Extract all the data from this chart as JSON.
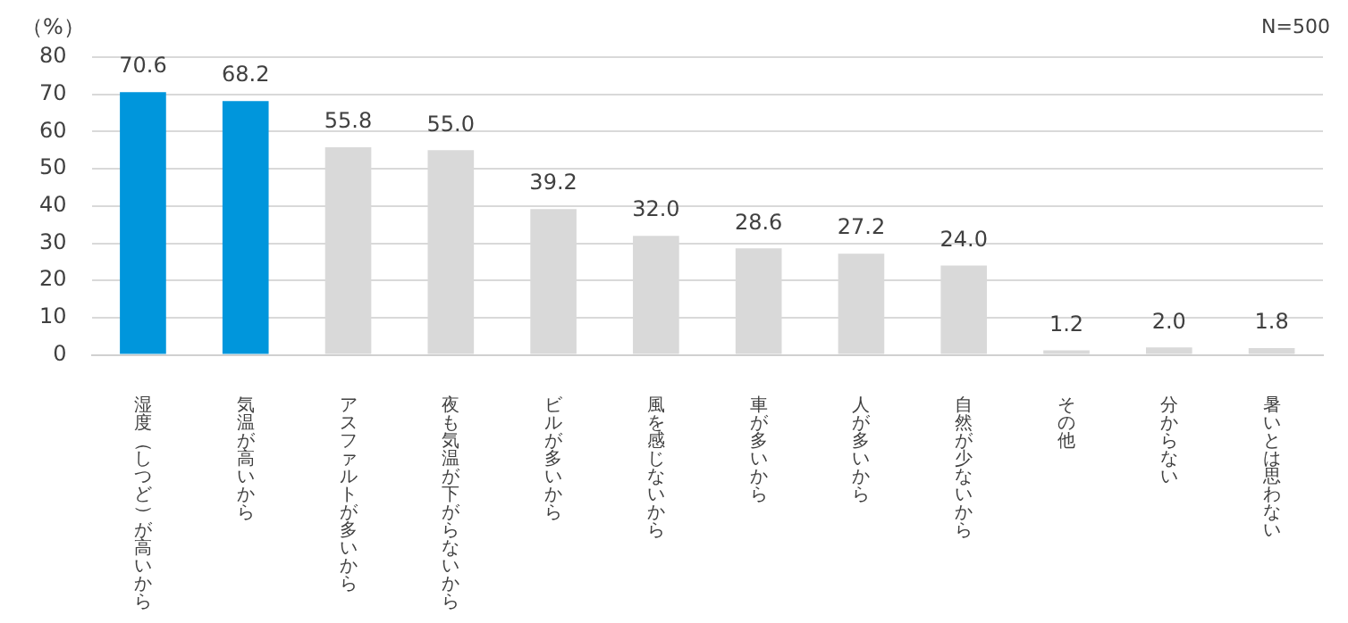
{
  "chart_data": {
    "type": "bar",
    "ylabel": "（%）",
    "annotations": [
      "N=500"
    ],
    "categories": [
      "湿度（しつど）が高いから",
      "気温が高いから",
      "アスファルトが多いから",
      "夜も気温が下がらないから",
      "ビルが多いから",
      "風を感じないから",
      "車が多いから",
      "人が多いから",
      "自然が少ないから",
      "その他",
      "分からない",
      "暑いとは思わない"
    ],
    "values": [
      70.6,
      68.2,
      55.8,
      55.0,
      39.2,
      32.0,
      28.6,
      27.2,
      24.0,
      1.2,
      2.0,
      1.8
    ],
    "value_labels": [
      "70.6",
      "68.2",
      "55.8",
      "55.0",
      "39.2",
      "32.0",
      "28.6",
      "27.2",
      "24.0",
      "1.2",
      "2.0",
      "1.8"
    ],
    "colors": [
      "#0096dc",
      "#0096dc",
      "#d9d9d9",
      "#d9d9d9",
      "#d9d9d9",
      "#d9d9d9",
      "#d9d9d9",
      "#d9d9d9",
      "#d9d9d9",
      "#d9d9d9",
      "#d9d9d9",
      "#d9d9d9"
    ],
    "ylim": [
      0,
      80
    ],
    "yticks": [
      0,
      10,
      20,
      30,
      40,
      50,
      60,
      70,
      80
    ],
    "grid": "y",
    "legend": false
  }
}
